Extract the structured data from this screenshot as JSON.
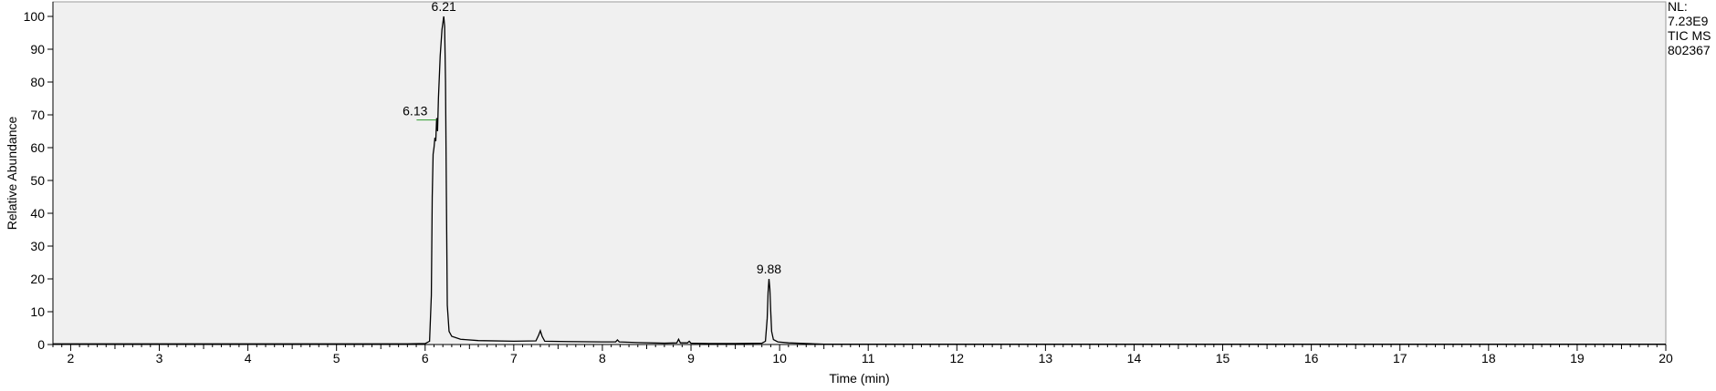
{
  "chart_data": {
    "type": "line",
    "xlabel": "Time (min)",
    "ylabel": "Relative Abundance",
    "xlim": [
      1.8,
      20
    ],
    "ylim": [
      0,
      100
    ],
    "x_ticks": [
      2,
      3,
      4,
      5,
      6,
      7,
      8,
      9,
      10,
      11,
      12,
      13,
      14,
      15,
      16,
      17,
      18,
      19,
      20
    ],
    "y_ticks": [
      0,
      10,
      20,
      30,
      40,
      50,
      60,
      70,
      80,
      90,
      100
    ],
    "grid": false,
    "plot_background": "#f0f0f0",
    "line_color": "#000000",
    "marker_color": "#2e9c2e",
    "annotations": [
      {
        "text": "6.21",
        "x": 6.21,
        "y": 100
      },
      {
        "text": "6.13",
        "x": 6.13,
        "y": 69
      },
      {
        "text": "9.88",
        "x": 9.88,
        "y": 20
      }
    ],
    "info_box": [
      "NL:",
      "7.23E9",
      "TIC  MS",
      "802367"
    ],
    "series": [
      {
        "points": [
          [
            1.8,
            0.2
          ],
          [
            5.8,
            0.2
          ],
          [
            6.0,
            0.3
          ],
          [
            6.05,
            1
          ],
          [
            6.07,
            15
          ],
          [
            6.08,
            45
          ],
          [
            6.09,
            58
          ],
          [
            6.1,
            60
          ],
          [
            6.11,
            63
          ],
          [
            6.12,
            62
          ],
          [
            6.13,
            69
          ],
          [
            6.14,
            65
          ],
          [
            6.15,
            75
          ],
          [
            6.17,
            88
          ],
          [
            6.19,
            96
          ],
          [
            6.21,
            100
          ],
          [
            6.22,
            97
          ],
          [
            6.23,
            80
          ],
          [
            6.24,
            45
          ],
          [
            6.25,
            12
          ],
          [
            6.27,
            4
          ],
          [
            6.3,
            2.5
          ],
          [
            6.4,
            1.6
          ],
          [
            6.6,
            1.2
          ],
          [
            7.0,
            1.0
          ],
          [
            7.25,
            1.1
          ],
          [
            7.28,
            2.8
          ],
          [
            7.3,
            4.2
          ],
          [
            7.32,
            2.5
          ],
          [
            7.35,
            1.0
          ],
          [
            7.6,
            0.9
          ],
          [
            8.0,
            0.8
          ],
          [
            8.15,
            0.8
          ],
          [
            8.17,
            1.4
          ],
          [
            8.19,
            0.8
          ],
          [
            8.4,
            0.6
          ],
          [
            8.7,
            0.4
          ],
          [
            8.84,
            0.5
          ],
          [
            8.86,
            1.6
          ],
          [
            8.88,
            0.5
          ],
          [
            8.96,
            0.5
          ],
          [
            8.98,
            1.0
          ],
          [
            9.0,
            0.4
          ],
          [
            9.2,
            0.3
          ],
          [
            9.5,
            0.3
          ],
          [
            9.8,
            0.4
          ],
          [
            9.84,
            1.0
          ],
          [
            9.86,
            8
          ],
          [
            9.87,
            16
          ],
          [
            9.88,
            20
          ],
          [
            9.89,
            17
          ],
          [
            9.9,
            10
          ],
          [
            9.91,
            4
          ],
          [
            9.93,
            1.5
          ],
          [
            9.98,
            0.8
          ],
          [
            10.1,
            0.5
          ],
          [
            10.3,
            0.3
          ],
          [
            10.5,
            0.1
          ],
          [
            12,
            0.1
          ],
          [
            16,
            0.1
          ],
          [
            20,
            0.1
          ]
        ]
      }
    ]
  }
}
